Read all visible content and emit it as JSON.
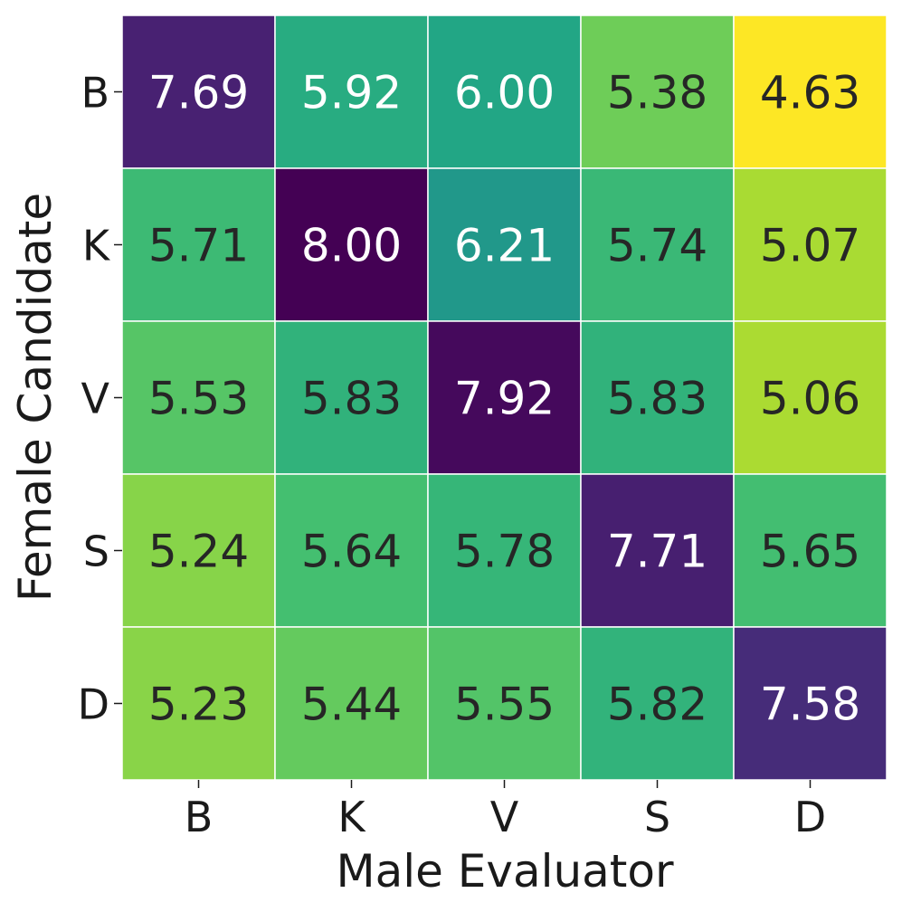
{
  "chart_data": {
    "type": "heatmap",
    "title": "",
    "xlabel": "Male Evaluator",
    "ylabel": "Female Candidate",
    "x_categories": [
      "B",
      "K",
      "V",
      "S",
      "D"
    ],
    "y_categories": [
      "B",
      "K",
      "V",
      "S",
      "D"
    ],
    "values": [
      [
        7.69,
        5.92,
        6.0,
        5.38,
        4.63
      ],
      [
        5.71,
        8.0,
        6.21,
        5.74,
        5.07
      ],
      [
        5.53,
        5.83,
        7.92,
        5.83,
        5.06
      ],
      [
        5.24,
        5.64,
        5.78,
        7.71,
        5.65
      ],
      [
        5.23,
        5.44,
        5.55,
        5.82,
        7.58
      ]
    ],
    "value_labels": [
      [
        "7.69",
        "5.92",
        "6.00",
        "5.38",
        "4.63"
      ],
      [
        "5.71",
        "8.00",
        "6.21",
        "5.74",
        "5.07"
      ],
      [
        "5.53",
        "5.83",
        "7.92",
        "5.83",
        "5.06"
      ],
      [
        "5.24",
        "5.64",
        "5.78",
        "7.71",
        "5.65"
      ],
      [
        "5.23",
        "5.44",
        "5.55",
        "5.82",
        "7.58"
      ]
    ],
    "colormap": "viridis_r",
    "color_range": [
      4.63,
      8.0
    ],
    "grid_line_color": "#ffffff",
    "text_color_dark": "#262626",
    "text_color_light": "#ffffff"
  }
}
